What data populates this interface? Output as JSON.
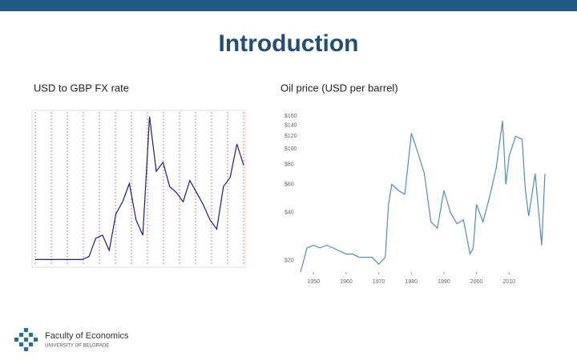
{
  "title": "Introduction",
  "footer": {
    "name": "Faculty of Economics",
    "university": "UNIVERSITY OF BELGRADE"
  },
  "chart_data": [
    {
      "type": "line",
      "title": "USD to GBP FX rate",
      "color": "#1a1a8c",
      "categories": [
        null,
        null,
        null,
        null,
        null,
        null,
        null,
        null,
        null,
        null,
        null,
        null,
        null,
        null,
        null,
        null,
        null,
        null,
        null,
        null,
        null,
        null,
        null,
        null,
        null,
        null,
        null,
        null,
        null,
        null,
        null,
        null
      ],
      "values": [
        0.47,
        0.47,
        0.47,
        0.47,
        0.47,
        0.47,
        0.47,
        0.47,
        0.48,
        0.54,
        0.55,
        0.5,
        0.62,
        0.66,
        0.72,
        0.6,
        0.55,
        0.94,
        0.76,
        0.79,
        0.71,
        0.69,
        0.66,
        0.73,
        0.69,
        0.65,
        0.6,
        0.57,
        0.71,
        0.74,
        0.85,
        0.78
      ],
      "ylim": [
        0.45,
        0.95
      ]
    },
    {
      "type": "line",
      "title": "Oil price (USD per barrel)",
      "color": "#4f8dc4",
      "log": true,
      "x": [
        1946,
        1948,
        1950,
        1952,
        1954,
        1956,
        1958,
        1960,
        1962,
        1964,
        1966,
        1968,
        1970,
        1972,
        1973,
        1974,
        1976,
        1978,
        1979,
        1980,
        1982,
        1984,
        1986,
        1988,
        1990,
        1992,
        1994,
        1996,
        1998,
        1999,
        2000,
        2002,
        2004,
        2006,
        2008,
        2009,
        2010,
        2012,
        2014,
        2015,
        2016,
        2018,
        2020,
        2021
      ],
      "values": [
        17,
        24,
        25,
        24,
        25,
        24,
        23,
        22,
        22,
        21,
        21,
        21,
        19,
        21,
        45,
        60,
        55,
        52,
        80,
        125,
        95,
        70,
        35,
        32,
        55,
        40,
        34,
        36,
        22,
        24,
        45,
        35,
        50,
        75,
        150,
        60,
        90,
        120,
        115,
        55,
        38,
        70,
        25,
        70
      ],
      "xlim": [
        1946,
        2021
      ],
      "ylim": [
        17,
        170
      ],
      "xticks": [
        1950,
        1960,
        1970,
        1980,
        1990,
        2000,
        2010
      ],
      "yticks": [
        {
          "value": 20,
          "label": "$20"
        },
        {
          "value": 40,
          "label": "$40"
        },
        {
          "value": 60,
          "label": "$60"
        },
        {
          "value": 80,
          "label": "$80"
        },
        {
          "value": 100,
          "label": "$100"
        },
        {
          "value": 120,
          "label": "$120"
        },
        {
          "value": 140,
          "label": "$140"
        },
        {
          "value": 160,
          "label": "$160"
        }
      ]
    }
  ]
}
